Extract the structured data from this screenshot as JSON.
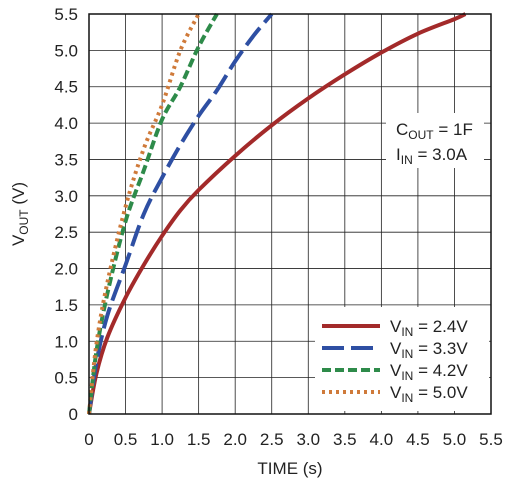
{
  "chart_data": {
    "type": "line",
    "xlabel": "TIME (s)",
    "ylabel": {
      "main": "V",
      "sub": "OUT",
      "unit": " (V)"
    },
    "xlim": [
      0,
      5.5
    ],
    "ylim": [
      0,
      5.5
    ],
    "xticks": [
      "0",
      "0.5",
      "1.0",
      "1.5",
      "2.0",
      "2.5",
      "3.0",
      "3.5",
      "4.0",
      "4.5",
      "5.0",
      "5.5"
    ],
    "yticks": [
      "0",
      "0.5",
      "1.0",
      "1.5",
      "2.0",
      "2.5",
      "3.0",
      "3.5",
      "4.0",
      "4.5",
      "5.0",
      "5.5"
    ],
    "grid": true,
    "legend_position": "bottom-right",
    "annotation": [
      {
        "main": "C",
        "sub": "OUT",
        "rest": " = 1F"
      },
      {
        "main": "I",
        "sub": "IN",
        "rest": " = 3.0A"
      }
    ],
    "series": [
      {
        "name": "V_IN = 2.4V",
        "label": {
          "main": "V",
          "sub": "IN",
          "rest": " = 2.4V"
        },
        "color": "#a32a2a",
        "style": "solid",
        "x": [
          0,
          0.1,
          0.25,
          0.5,
          0.75,
          1.0,
          1.25,
          1.5,
          2.0,
          2.5,
          3.0,
          3.5,
          4.0,
          4.5,
          5.0,
          5.15
        ],
        "y": [
          0,
          0.55,
          1.05,
          1.6,
          2.05,
          2.45,
          2.8,
          3.08,
          3.55,
          3.97,
          4.34,
          4.67,
          4.97,
          5.23,
          5.43,
          5.5
        ]
      },
      {
        "name": "V_IN = 3.3V",
        "label": {
          "main": "V",
          "sub": "IN",
          "rest": " = 3.3V"
        },
        "color": "#2e4fa3",
        "style": "dash",
        "x": [
          0,
          0.1,
          0.25,
          0.5,
          0.75,
          1.0,
          1.25,
          1.5,
          1.75,
          2.0,
          2.25,
          2.5
        ],
        "y": [
          0,
          0.7,
          1.35,
          2.05,
          2.75,
          3.25,
          3.7,
          4.1,
          4.45,
          4.85,
          5.2,
          5.5
        ]
      },
      {
        "name": "V_IN = 4.2V",
        "label": {
          "main": "V",
          "sub": "IN",
          "rest": " = 4.2V"
        },
        "color": "#2e8b4a",
        "style": "dash-short",
        "x": [
          0,
          0.1,
          0.25,
          0.5,
          0.75,
          1.0,
          1.25,
          1.5,
          1.75
        ],
        "y": [
          0,
          0.85,
          1.65,
          2.65,
          3.35,
          4.05,
          4.5,
          5.05,
          5.5
        ]
      },
      {
        "name": "V_IN = 5.0V",
        "label": {
          "main": "V",
          "sub": "IN",
          "rest": " = 5.0V"
        },
        "color": "#cf7a3a",
        "style": "dot",
        "x": [
          0,
          0.1,
          0.25,
          0.5,
          0.75,
          1.0,
          1.25,
          1.5
        ],
        "y": [
          0,
          0.95,
          1.8,
          2.85,
          3.65,
          4.25,
          5.0,
          5.5
        ]
      }
    ]
  }
}
